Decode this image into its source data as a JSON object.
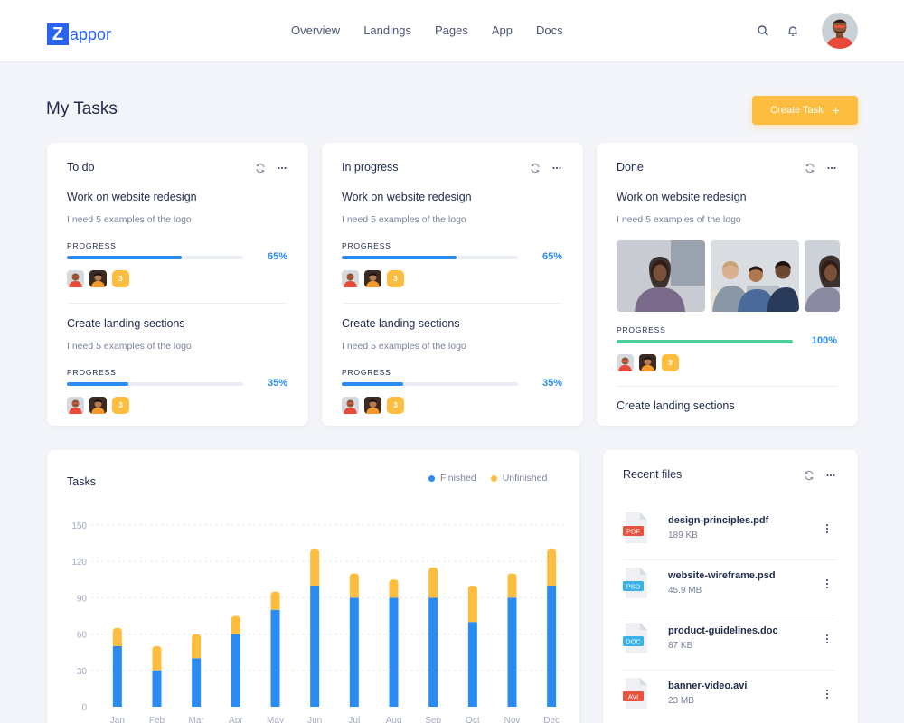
{
  "brand": {
    "mark": "Z",
    "rest": "appor"
  },
  "nav": [
    "Overview",
    "Landings",
    "Pages",
    "App",
    "Docs"
  ],
  "page": {
    "title": "My Tasks",
    "create_label": "Create Task",
    "create_plus": "+"
  },
  "columns": [
    {
      "title": "To do",
      "tasks": [
        {
          "title": "Work on website redesign",
          "desc": "I need 5 examples of the logo",
          "progress_label": "PROGRESS",
          "progress": 0.65,
          "pct": "65%",
          "extra": "3"
        },
        {
          "title": "Create landing sections",
          "desc": "I need 5 examples of the logo",
          "progress_label": "PROGRESS",
          "progress": 0.35,
          "pct": "35%",
          "extra": "3"
        }
      ]
    },
    {
      "title": "In progress",
      "tasks": [
        {
          "title": "Work on website redesign",
          "desc": "I need 5 examples of the logo",
          "progress_label": "PROGRESS",
          "progress": 0.65,
          "pct": "65%",
          "extra": "3"
        },
        {
          "title": "Create landing sections",
          "desc": "I need 5 examples of the logo",
          "progress_label": "PROGRESS",
          "progress": 0.35,
          "pct": "35%",
          "extra": "3"
        }
      ]
    },
    {
      "title": "Done",
      "tasks": [
        {
          "title": "Work on website redesign",
          "desc": "I need 5 examples of the logo",
          "progress_label": "PROGRESS",
          "progress": 1.0,
          "pct": "100%",
          "extra": "3"
        },
        {
          "title": "Create landing sections"
        }
      ]
    }
  ],
  "colors": {
    "blue": "#2a8bf2",
    "yellow": "#fdbd3f",
    "green": "#4fcf9c",
    "navy": "#1e2a4a",
    "brand": "#2a63ef"
  },
  "chart_data": {
    "type": "bar",
    "title": "Tasks",
    "stacked": true,
    "categories": [
      "Jan",
      "Feb",
      "Mar",
      "Apr",
      "May",
      "Jun",
      "Jul",
      "Aug",
      "Sep",
      "Oct",
      "Nov",
      "Dec"
    ],
    "series": [
      {
        "name": "Finished",
        "color": "#2a8bf2",
        "values": [
          50,
          30,
          40,
          60,
          80,
          100,
          90,
          90,
          90,
          70,
          90,
          100
        ]
      },
      {
        "name": "Unfinished",
        "color": "#fdbd3f",
        "values": [
          15,
          20,
          20,
          15,
          15,
          30,
          20,
          15,
          25,
          30,
          20,
          30
        ]
      }
    ],
    "yticks": [
      "0",
      "30",
      "60",
      "90",
      "120",
      "150"
    ],
    "ylim": [
      0,
      150
    ],
    "grid": true,
    "legend": "top-right"
  },
  "recent_files": {
    "title": "Recent files",
    "files": [
      {
        "name": "design-principles.pdf",
        "size": "189 KB",
        "type": "PDF",
        "color": "#e8533f"
      },
      {
        "name": "website-wireframe.psd",
        "size": "45.9 MB",
        "type": "PSD",
        "color": "#3ab2e8"
      },
      {
        "name": "product-guidelines.doc",
        "size": "87 KB",
        "type": "DOC",
        "color": "#3ab2e8"
      },
      {
        "name": "banner-video.avi",
        "size": "23 MB",
        "type": "AVI",
        "color": "#e8533f"
      }
    ]
  }
}
